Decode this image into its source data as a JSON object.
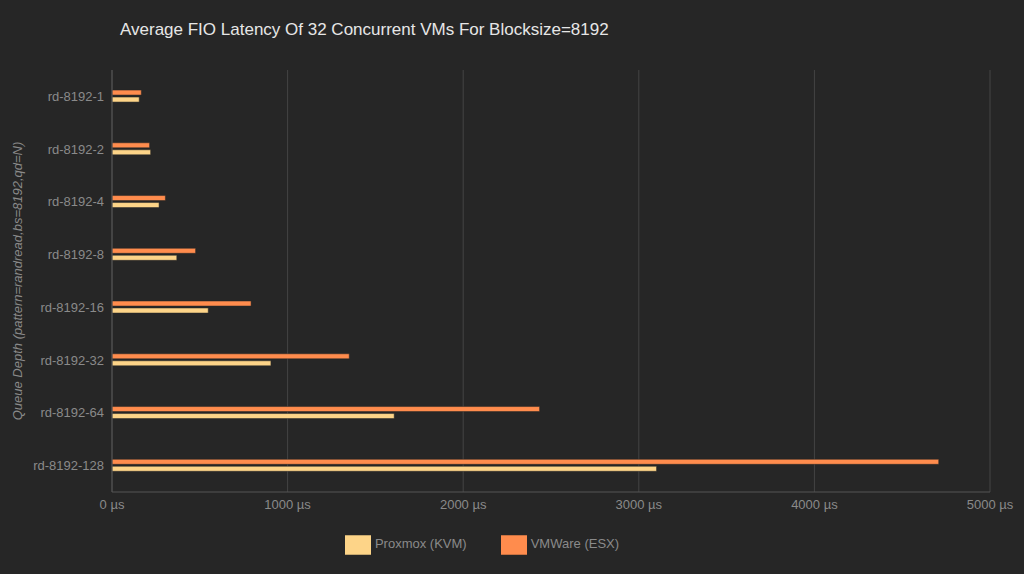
{
  "chart_data": {
    "type": "bar",
    "orientation": "horizontal",
    "title": "Average FIO Latency Of 32 Concurrent VMs For Blocksize=8192",
    "y_label": "Queue Depth (pattern=randread,bs=8192,qd=N)",
    "categories": [
      "rd-8192-1",
      "rd-8192-2",
      "rd-8192-4",
      "rd-8192-8",
      "rd-8192-16",
      "rd-8192-32",
      "rd-8192-64",
      "rd-8192-128"
    ],
    "series": [
      {
        "name": "VMWare (ESX)",
        "color": "#ff8c4d",
        "values": [
          167,
          214,
          304,
          476,
          792,
          1351,
          2435,
          4708
        ]
      },
      {
        "name": "Proxmox (KVM)",
        "color": "#fdd488",
        "values": [
          155,
          220,
          268,
          369,
          548,
          905,
          1607,
          3101
        ]
      }
    ],
    "xlim": [
      0,
      5000
    ],
    "xticks": [
      {
        "value": 0,
        "label": "0 µs"
      },
      {
        "value": 1000,
        "label": "1000 µs"
      },
      {
        "value": 2000,
        "label": "2000 µs"
      },
      {
        "value": 3000,
        "label": "3000 µs"
      },
      {
        "value": 4000,
        "label": "4000 µs"
      },
      {
        "value": 5000,
        "label": "5000 µs"
      }
    ],
    "grid": true,
    "legend": "bottom"
  }
}
